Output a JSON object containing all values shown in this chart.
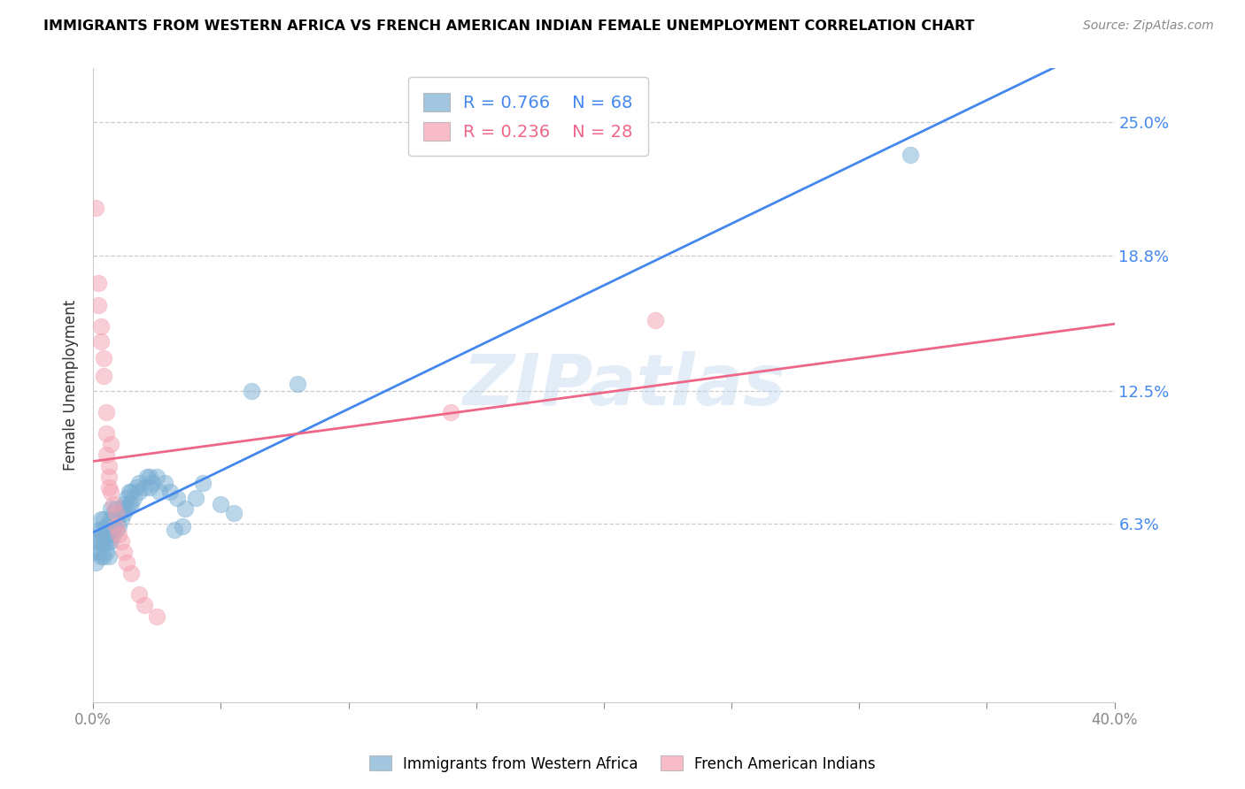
{
  "title": "IMMIGRANTS FROM WESTERN AFRICA VS FRENCH AMERICAN INDIAN FEMALE UNEMPLOYMENT CORRELATION CHART",
  "source": "Source: ZipAtlas.com",
  "ylabel": "Female Unemployment",
  "ytick_labels": [
    "25.0%",
    "18.8%",
    "12.5%",
    "6.3%"
  ],
  "ytick_values": [
    0.25,
    0.188,
    0.125,
    0.063
  ],
  "xmin": 0.0,
  "xmax": 0.4,
  "ymin": -0.02,
  "ymax": 0.275,
  "legend_blue_r": "R = 0.766",
  "legend_blue_n": "N = 68",
  "legend_pink_r": "R = 0.236",
  "legend_pink_n": "N = 28",
  "blue_color": "#7BAFD4",
  "pink_color": "#F4A0B0",
  "line_blue": "#4488EE",
  "line_pink": "#EE6688",
  "watermark": "ZIPatlas",
  "blue_points": [
    [
      0.001,
      0.045
    ],
    [
      0.001,
      0.05
    ],
    [
      0.001,
      0.055
    ],
    [
      0.002,
      0.05
    ],
    [
      0.002,
      0.055
    ],
    [
      0.002,
      0.06
    ],
    [
      0.003,
      0.048
    ],
    [
      0.003,
      0.055
    ],
    [
      0.003,
      0.06
    ],
    [
      0.003,
      0.065
    ],
    [
      0.004,
      0.048
    ],
    [
      0.004,
      0.055
    ],
    [
      0.004,
      0.06
    ],
    [
      0.004,
      0.065
    ],
    [
      0.005,
      0.05
    ],
    [
      0.005,
      0.055
    ],
    [
      0.005,
      0.058
    ],
    [
      0.005,
      0.062
    ],
    [
      0.006,
      0.048
    ],
    [
      0.006,
      0.055
    ],
    [
      0.006,
      0.058
    ],
    [
      0.006,
      0.063
    ],
    [
      0.007,
      0.055
    ],
    [
      0.007,
      0.06
    ],
    [
      0.007,
      0.065
    ],
    [
      0.007,
      0.07
    ],
    [
      0.008,
      0.058
    ],
    [
      0.008,
      0.062
    ],
    [
      0.008,
      0.068
    ],
    [
      0.009,
      0.06
    ],
    [
      0.009,
      0.065
    ],
    [
      0.009,
      0.07
    ],
    [
      0.01,
      0.062
    ],
    [
      0.01,
      0.068
    ],
    [
      0.011,
      0.065
    ],
    [
      0.011,
      0.07
    ],
    [
      0.012,
      0.068
    ],
    [
      0.012,
      0.072
    ],
    [
      0.013,
      0.07
    ],
    [
      0.013,
      0.075
    ],
    [
      0.014,
      0.072
    ],
    [
      0.014,
      0.078
    ],
    [
      0.015,
      0.072
    ],
    [
      0.015,
      0.078
    ],
    [
      0.016,
      0.075
    ],
    [
      0.017,
      0.08
    ],
    [
      0.018,
      0.078
    ],
    [
      0.018,
      0.082
    ],
    [
      0.02,
      0.08
    ],
    [
      0.021,
      0.085
    ],
    [
      0.022,
      0.08
    ],
    [
      0.022,
      0.085
    ],
    [
      0.023,
      0.082
    ],
    [
      0.025,
      0.085
    ],
    [
      0.026,
      0.078
    ],
    [
      0.028,
      0.082
    ],
    [
      0.03,
      0.078
    ],
    [
      0.032,
      0.06
    ],
    [
      0.033,
      0.075
    ],
    [
      0.035,
      0.062
    ],
    [
      0.036,
      0.07
    ],
    [
      0.04,
      0.075
    ],
    [
      0.043,
      0.082
    ],
    [
      0.05,
      0.072
    ],
    [
      0.055,
      0.068
    ],
    [
      0.062,
      0.125
    ],
    [
      0.08,
      0.128
    ],
    [
      0.32,
      0.235
    ]
  ],
  "pink_points": [
    [
      0.001,
      0.21
    ],
    [
      0.002,
      0.175
    ],
    [
      0.002,
      0.165
    ],
    [
      0.003,
      0.155
    ],
    [
      0.003,
      0.148
    ],
    [
      0.004,
      0.14
    ],
    [
      0.004,
      0.132
    ],
    [
      0.005,
      0.115
    ],
    [
      0.005,
      0.105
    ],
    [
      0.005,
      0.095
    ],
    [
      0.006,
      0.09
    ],
    [
      0.006,
      0.085
    ],
    [
      0.006,
      0.08
    ],
    [
      0.007,
      0.078
    ],
    [
      0.007,
      0.1
    ],
    [
      0.008,
      0.072
    ],
    [
      0.009,
      0.068
    ],
    [
      0.009,
      0.062
    ],
    [
      0.01,
      0.058
    ],
    [
      0.011,
      0.055
    ],
    [
      0.012,
      0.05
    ],
    [
      0.013,
      0.045
    ],
    [
      0.015,
      0.04
    ],
    [
      0.018,
      0.03
    ],
    [
      0.02,
      0.025
    ],
    [
      0.025,
      0.02
    ],
    [
      0.14,
      0.115
    ],
    [
      0.22,
      0.158
    ]
  ]
}
